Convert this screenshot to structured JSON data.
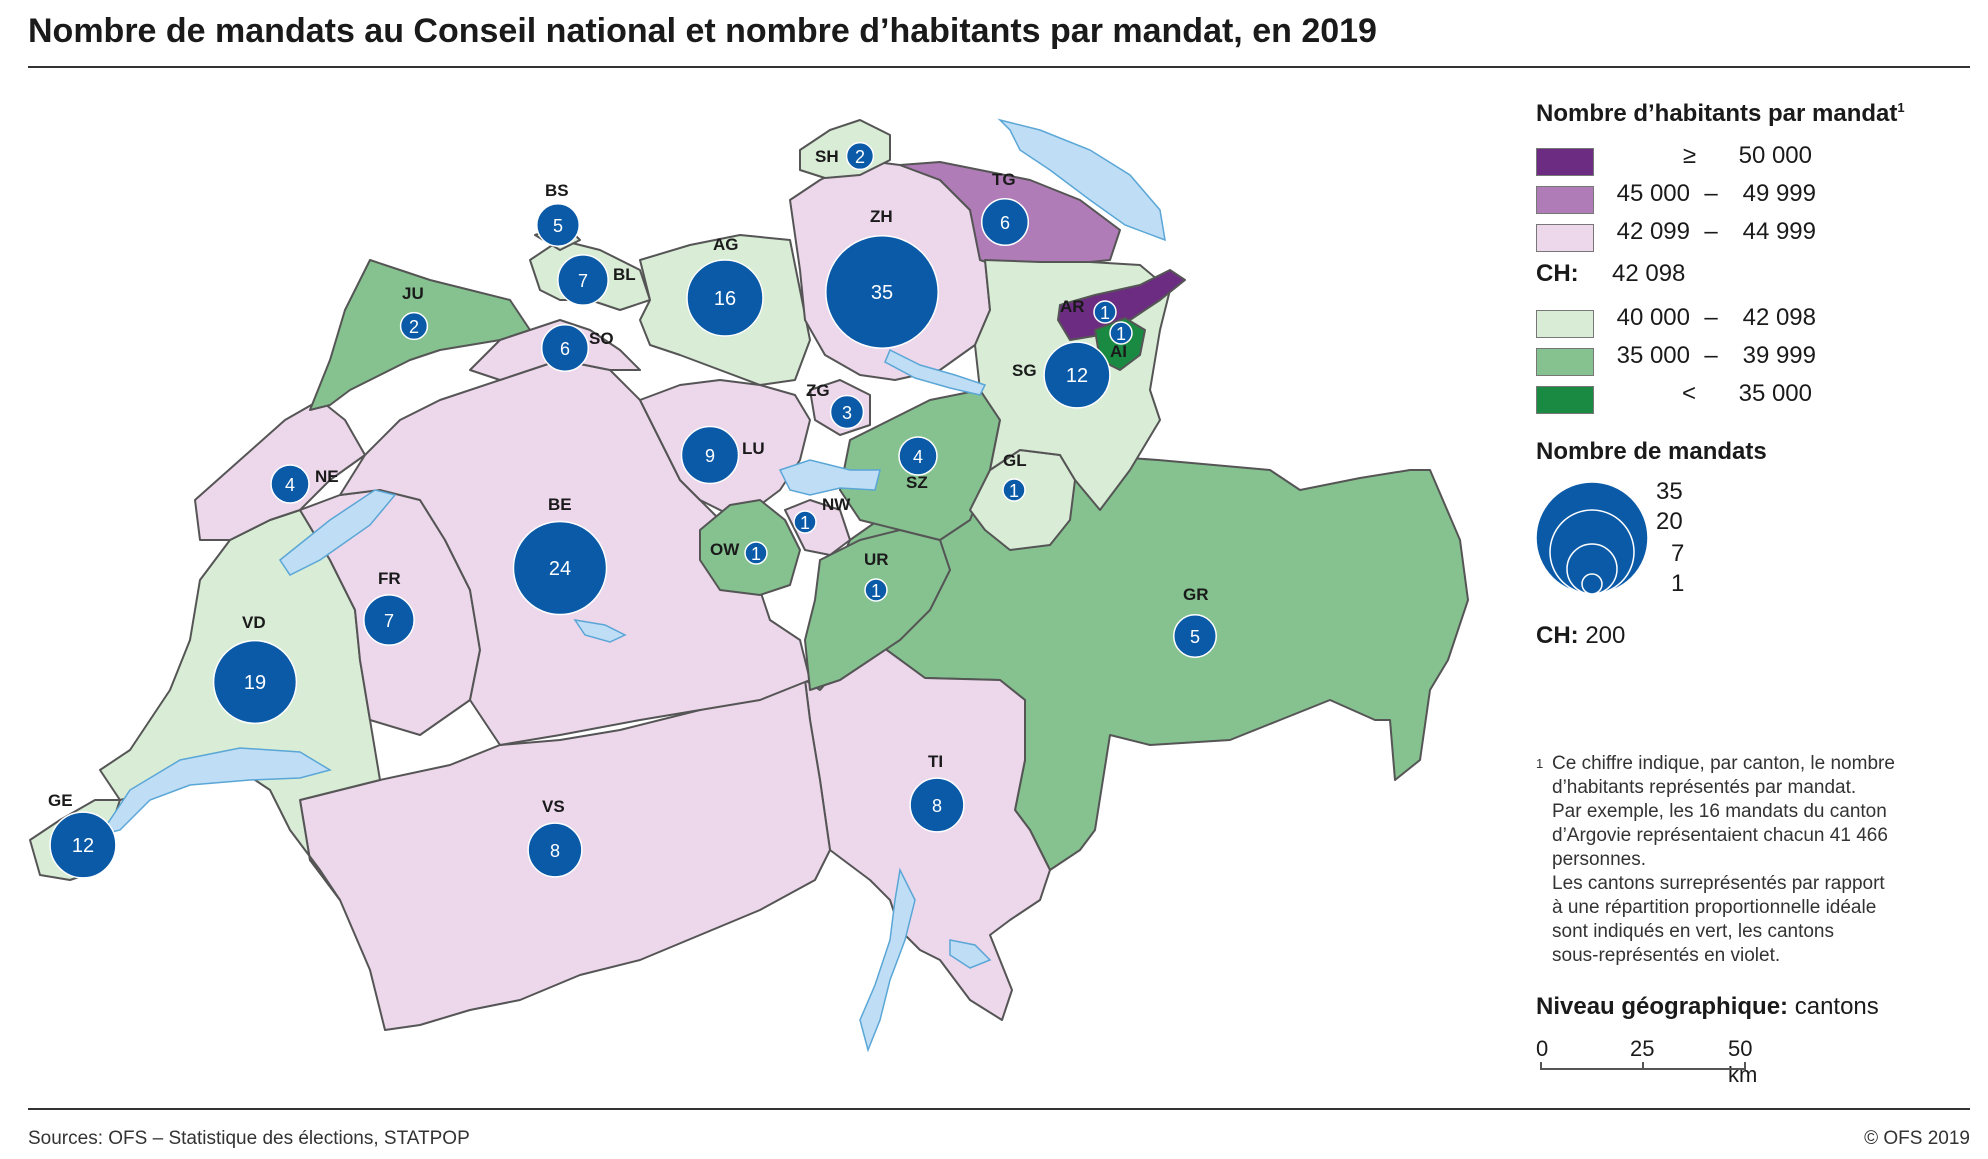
{
  "title": "Nombre de mandats au Conseil national et nombre d’habitants par mandat, en 2019",
  "legend": {
    "inhabitants_heading": "Nombre d’habitants par mandat",
    "inhabitants_sup": "1",
    "classes": [
      {
        "a": "≥",
        "b": "50 000",
        "color": "#6b2c82",
        "kind": "ge"
      },
      {
        "a": "45 000",
        "b": "49 999",
        "color": "#b07cb7",
        "kind": "range"
      },
      {
        "a": "42 099",
        "b": "44 999",
        "color": "#ecd7eb",
        "kind": "range"
      }
    ],
    "ch_label": "CH:",
    "ch_value": "42 098",
    "classes_low": [
      {
        "a": "40 000",
        "b": "42 098",
        "color": "#d8ecd6",
        "kind": "range"
      },
      {
        "a": "35 000",
        "b": "39 999",
        "color": "#85c290",
        "kind": "range"
      },
      {
        "a": "<",
        "b": "35 000",
        "color": "#1a8a42",
        "kind": "lt"
      }
    ],
    "mandates_heading": "Nombre de mandats",
    "mandate_sizes": [
      "35",
      "20",
      "7",
      "1"
    ],
    "mandates_ch_label": "CH:",
    "mandates_ch_value": "200",
    "geo_level_label": "Niveau géographique:",
    "geo_level_value": "cantons",
    "scale": {
      "t0": "0",
      "t1": "25",
      "t2": "50 km"
    }
  },
  "footnote": {
    "marker": "1",
    "lines": [
      "Ce chiffre indique, par canton, le nombre",
      "d’habitants représentés par mandat.",
      "Par exemple, les 16 mandats du canton",
      "d’Argovie représentaient chacun 41 466",
      "personnes.",
      "Les cantons surreprésentés par rapport",
      "à une répartition proportionnelle idéale",
      "sont indiqués en vert, les cantons",
      "sous-représentés en violet."
    ]
  },
  "source": "Sources: OFS – Statistique des élections, STATPOP",
  "copyright": "© OFS 2019",
  "colors": {
    "ge_50000": "#6b2c82",
    "r_45000": "#b07cb7",
    "r_42099": "#ecd7eb",
    "r_40000": "#d8ecd6",
    "r_35000": "#85c290",
    "lt_35000": "#1a8a42",
    "bubble": "#0a5aa8",
    "lake": "#bfdef5"
  },
  "cantons": [
    {
      "code": "ZH",
      "mandates": 35,
      "class": "r_42099"
    },
    {
      "code": "BE",
      "mandates": 24,
      "class": "r_42099"
    },
    {
      "code": "VD",
      "mandates": 19,
      "class": "r_40000"
    },
    {
      "code": "AG",
      "mandates": 16,
      "class": "r_40000"
    },
    {
      "code": "SG",
      "mandates": 12,
      "class": "r_40000"
    },
    {
      "code": "GE",
      "mandates": 12,
      "class": "r_40000"
    },
    {
      "code": "LU",
      "mandates": 9,
      "class": "r_42099"
    },
    {
      "code": "TI",
      "mandates": 8,
      "class": "r_42099"
    },
    {
      "code": "VS",
      "mandates": 8,
      "class": "r_42099"
    },
    {
      "code": "FR",
      "mandates": 7,
      "class": "r_42099"
    },
    {
      "code": "BL",
      "mandates": 7,
      "class": "r_40000"
    },
    {
      "code": "TG",
      "mandates": 6,
      "class": "r_45000"
    },
    {
      "code": "SO",
      "mandates": 6,
      "class": "r_42099"
    },
    {
      "code": "BS",
      "mandates": 5,
      "class": "r_40000"
    },
    {
      "code": "GR",
      "mandates": 5,
      "class": "r_35000"
    },
    {
      "code": "NE",
      "mandates": 4,
      "class": "r_42099"
    },
    {
      "code": "SZ",
      "mandates": 4,
      "class": "r_35000"
    },
    {
      "code": "ZG",
      "mandates": 3,
      "class": "r_42099"
    },
    {
      "code": "SH",
      "mandates": 2,
      "class": "r_40000"
    },
    {
      "code": "JU",
      "mandates": 2,
      "class": "r_35000"
    },
    {
      "code": "AR",
      "mandates": 1,
      "class": "ge_50000"
    },
    {
      "code": "AI",
      "mandates": 1,
      "class": "lt_35000"
    },
    {
      "code": "GL",
      "mandates": 1,
      "class": "r_40000"
    },
    {
      "code": "NW",
      "mandates": 1,
      "class": "r_42099"
    },
    {
      "code": "OW",
      "mandates": 1,
      "class": "r_35000"
    },
    {
      "code": "UR",
      "mandates": 1,
      "class": "r_35000"
    }
  ]
}
